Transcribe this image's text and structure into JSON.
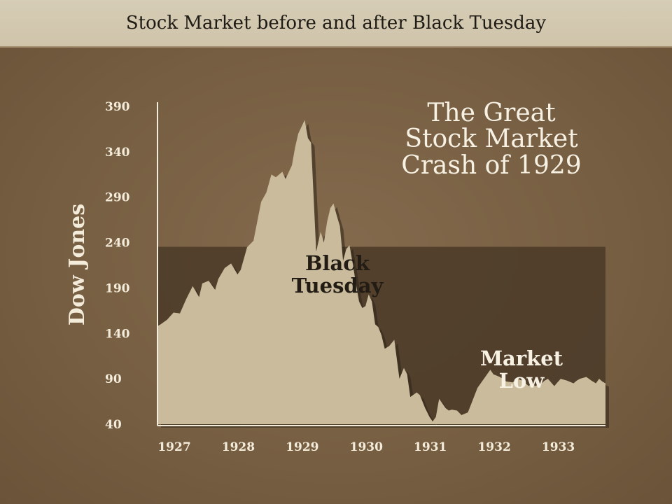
{
  "header": {
    "title": "Stock Market before and after Black Tuesday"
  },
  "chart_data": {
    "type": "area",
    "title": "The Great Stock Market Crash of 1929",
    "title_lines": [
      "The Great",
      "Stock Market",
      "Crash of 1929"
    ],
    "xlabel": "",
    "ylabel": "Dow Jones",
    "xlim": [
      1927.0,
      1934.0
    ],
    "ylim": [
      40,
      390
    ],
    "yticks": [
      390,
      340,
      290,
      240,
      190,
      140,
      90,
      40
    ],
    "xtick_labels": [
      "1927",
      "1928",
      "1929",
      "1930",
      "1931",
      "1932",
      "1933"
    ],
    "grid": false,
    "annotations": [
      {
        "lines": [
          "Black",
          "Tuesday"
        ]
      },
      {
        "lines": [
          "Market",
          "Low"
        ]
      }
    ],
    "colors": {
      "fill": "#c9bb9b",
      "shadow": "#4a3a28",
      "text": "#f4ecda"
    },
    "series": [
      {
        "x": [
          1927.0,
          1927.05,
          1927.15,
          1927.25,
          1927.35,
          1927.45,
          1927.55,
          1927.65,
          1927.7,
          1927.8,
          1927.9,
          1927.95,
          1928.05,
          1928.15,
          1928.25,
          1928.3,
          1928.4,
          1928.5,
          1928.55,
          1928.62,
          1928.7,
          1928.78,
          1928.85,
          1928.95,
          1929.0,
          1929.1,
          1929.15,
          1929.2,
          1929.3,
          1929.35,
          1929.4,
          1929.48,
          1929.55,
          1929.6,
          1929.65,
          1929.7,
          1929.75,
          1929.8,
          1929.85,
          1929.9,
          1929.95,
          1930.0,
          1930.05,
          1930.1,
          1930.15,
          1930.2,
          1930.25,
          1930.3,
          1930.35,
          1930.4,
          1930.45,
          1930.5,
          1930.55,
          1930.62,
          1930.7,
          1930.78,
          1930.85,
          1930.9,
          1930.95,
          1931.05,
          1931.1,
          1931.18,
          1931.25,
          1931.3,
          1931.35,
          1931.4,
          1931.5,
          1931.55,
          1931.6,
          1931.68,
          1931.75,
          1931.85,
          1931.9,
          1932.0,
          1932.1,
          1932.2,
          1932.25,
          1932.35,
          1932.45,
          1932.55,
          1932.62,
          1932.7,
          1932.8,
          1932.85,
          1932.9,
          1933.0,
          1933.05,
          1933.1,
          1933.2,
          1933.25,
          1933.3,
          1933.4,
          1933.5,
          1933.55,
          1933.6,
          1933.7,
          1933.78,
          1933.85,
          1933.9,
          1933.95,
          1934.0
        ],
        "y": [
          148,
          150,
          155,
          163,
          162,
          178,
          192,
          180,
          195,
          198,
          188,
          200,
          212,
          217,
          205,
          210,
          235,
          242,
          260,
          285,
          295,
          315,
          312,
          318,
          310,
          325,
          345,
          360,
          375,
          355,
          350,
          230,
          252,
          240,
          263,
          278,
          283,
          270,
          258,
          220,
          233,
          237,
          217,
          195,
          175,
          168,
          170,
          183,
          175,
          150,
          147,
          138,
          123,
          126,
          133,
          90,
          102,
          95,
          70,
          75,
          72,
          58,
          48,
          43,
          48,
          68,
          58,
          55,
          56,
          55,
          50,
          53,
          62,
          80,
          90,
          100,
          95,
          92,
          87,
          86,
          90,
          88,
          82,
          85,
          82,
          85,
          88,
          90,
          82,
          86,
          90,
          88,
          85,
          88,
          90,
          92,
          88,
          85,
          90,
          87,
          85
        ]
      }
    ]
  }
}
